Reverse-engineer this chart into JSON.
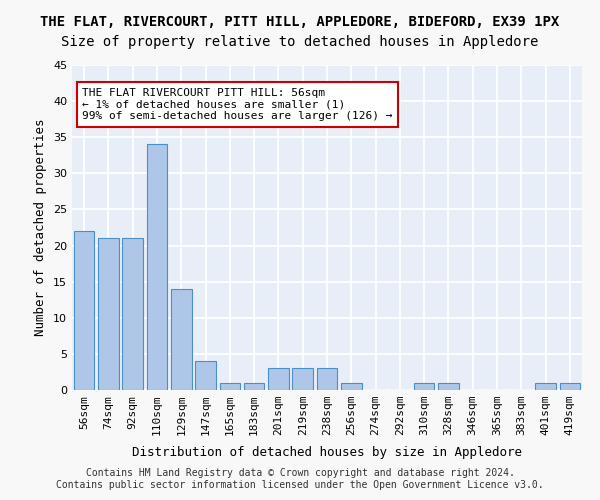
{
  "title1": "THE FLAT, RIVERCOURT, PITT HILL, APPLEDORE, BIDEFORD, EX39 1PX",
  "title2": "Size of property relative to detached houses in Appledore",
  "xlabel": "Distribution of detached houses by size in Appledore",
  "ylabel": "Number of detached properties",
  "bar_labels": [
    "56sqm",
    "74sqm",
    "92sqm",
    "110sqm",
    "129sqm",
    "147sqm",
    "165sqm",
    "183sqm",
    "201sqm",
    "219sqm",
    "238sqm",
    "256sqm",
    "274sqm",
    "292sqm",
    "310sqm",
    "328sqm",
    "346sqm",
    "365sqm",
    "383sqm",
    "401sqm",
    "419sqm"
  ],
  "bar_values": [
    22,
    21,
    21,
    34,
    14,
    4,
    1,
    1,
    3,
    3,
    3,
    1,
    0,
    0,
    1,
    1,
    0,
    0,
    0,
    1,
    1
  ],
  "bar_color": "#aec6e8",
  "bar_edge_color": "#4a90c4",
  "highlight_index": 0,
  "highlight_color": "#aec6e8",
  "highlight_edge_color": "#4a90c4",
  "ylim": [
    0,
    45
  ],
  "yticks": [
    0,
    5,
    10,
    15,
    20,
    25,
    30,
    35,
    40,
    45
  ],
  "annotation_text": "THE FLAT RIVERCOURT PITT HILL: 56sqm\n← 1% of detached houses are smaller (1)\n99% of semi-detached houses are larger (126) →",
  "annotation_box_color": "#ffffff",
  "annotation_box_edge_color": "#cc0000",
  "footer_text": "Contains HM Land Registry data © Crown copyright and database right 2024.\nContains public sector information licensed under the Open Government Licence v3.0.",
  "bg_color": "#e8eef8",
  "grid_color": "#ffffff",
  "title1_fontsize": 10,
  "title2_fontsize": 10,
  "xlabel_fontsize": 9,
  "ylabel_fontsize": 9,
  "tick_fontsize": 8,
  "annotation_fontsize": 8,
  "footer_fontsize": 7
}
